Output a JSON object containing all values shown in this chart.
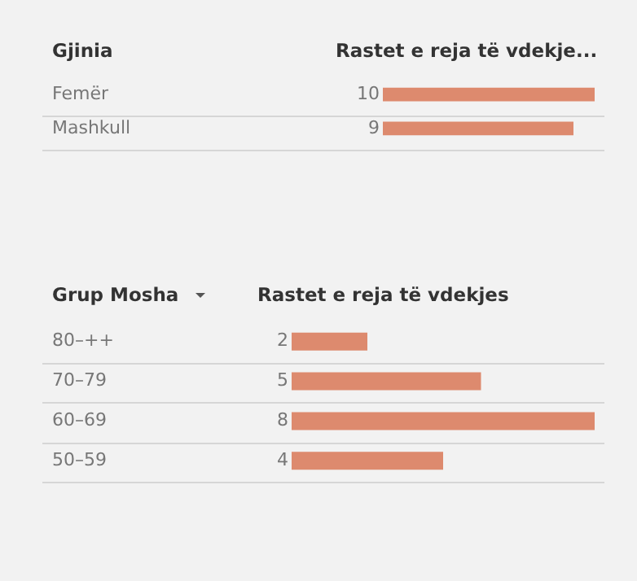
{
  "chart_data": [
    {
      "type": "bar",
      "orientation": "horizontal",
      "ylabel": "Gjinia",
      "xlabel": "Rastet e reja të vdekje...",
      "categories": [
        "Femër",
        "Mashkull"
      ],
      "values": [
        10,
        9
      ],
      "color": "#dd8a6e",
      "data_labels": true,
      "grid": "y",
      "legend": false
    },
    {
      "type": "bar",
      "orientation": "horizontal",
      "ylabel": "Grup Mosha",
      "xlabel": "Rastet e reja të vdekjes",
      "categories": [
        "80–++",
        "70–79",
        "60–69",
        "50–59"
      ],
      "values": [
        2,
        5,
        8,
        4
      ],
      "color": "#dd8a6e",
      "data_labels": true,
      "grid": "y",
      "legend": false
    }
  ]
}
